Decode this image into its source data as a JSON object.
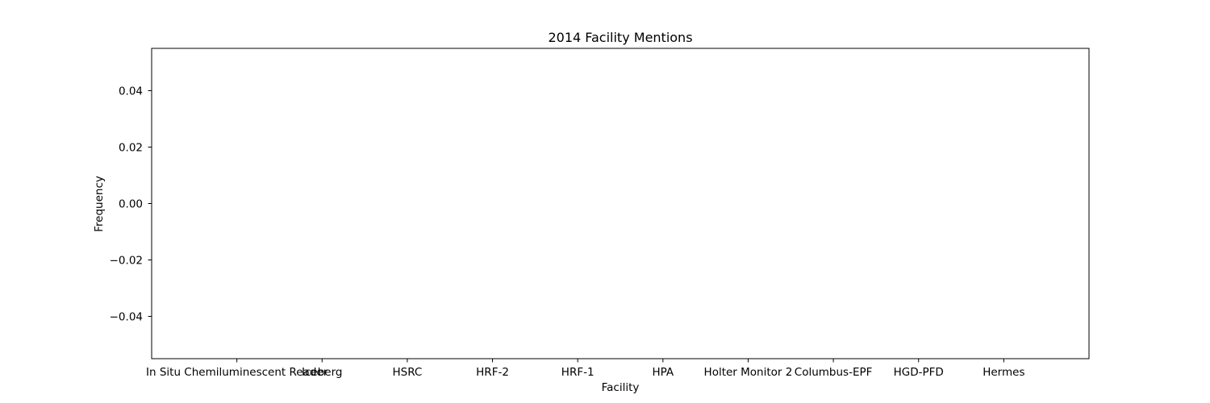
{
  "chart_data": {
    "type": "bar",
    "title": "2014 Facility Mentions",
    "xlabel": "Facility",
    "ylabel": "Frequency",
    "categories": [
      "In Situ Chemiluminescent Reader",
      "Iceberg",
      "HSRC",
      "HRF-2",
      "HRF-1",
      "HPA",
      "Holter Monitor 2",
      "Columbus-EPF",
      "HGD-PFD",
      "Hermes"
    ],
    "values": [
      0,
      0,
      0,
      0,
      0,
      0,
      0,
      0,
      0,
      0
    ],
    "ylim": [
      -0.055,
      0.055
    ],
    "yticks": [
      -0.04,
      -0.02,
      0.0,
      0.02,
      0.04
    ],
    "ytick_labels": [
      "−0.04",
      "−0.02",
      "0.00",
      "0.02",
      "0.04"
    ],
    "grid": false,
    "bar_color": "#1f77b4"
  }
}
